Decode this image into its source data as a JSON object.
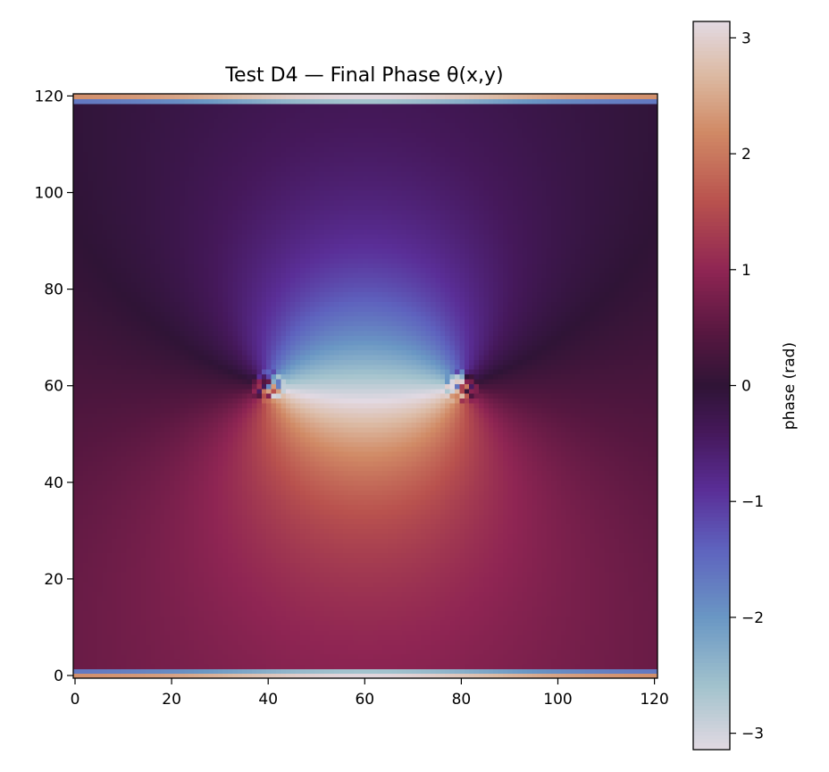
{
  "chart_data": {
    "type": "heatmap",
    "title": "Test D4 — Final Phase θ(x,y)",
    "xlabel": "",
    "ylabel": "",
    "xlim": [
      0,
      121
    ],
    "ylim": [
      0,
      121
    ],
    "x_ticks": [
      0,
      20,
      40,
      60,
      80,
      100,
      120
    ],
    "y_ticks": [
      0,
      20,
      40,
      60,
      80,
      100,
      120
    ],
    "grid": false,
    "colormap": "twilight_shifted",
    "colorbar": {
      "label": "phase (rad)",
      "range": [
        -3.14159,
        3.14159
      ],
      "ticks": [
        3,
        2,
        1,
        0,
        -1,
        -2,
        -3
      ],
      "tick_labels": [
        "3",
        "2",
        "1",
        "0",
        "−1",
        "−2",
        "−3"
      ]
    },
    "field_model": {
      "description": "phase of field with vortex-antivortex pair plus boundary layers",
      "vortices": [
        {
          "x": 40,
          "y": 60,
          "charge": 1
        },
        {
          "x": 80,
          "y": 60,
          "charge": -1
        }
      ],
      "core_radius": 4,
      "offset": 0.3,
      "boundary_rows_top": [
        119,
        120
      ],
      "boundary_rows_bottom": [
        0,
        1
      ]
    },
    "colormap_stops": [
      {
        "v": -3.14159,
        "color": "#e2d9e2"
      },
      {
        "v": -2.6,
        "color": "#a3c3cd"
      },
      {
        "v": -2.0,
        "color": "#6a97c4"
      },
      {
        "v": -1.4,
        "color": "#5e62be"
      },
      {
        "v": -0.9,
        "color": "#5a2e97"
      },
      {
        "v": -0.4,
        "color": "#45185a"
      },
      {
        "v": 0.0,
        "color": "#2f1436"
      },
      {
        "v": 0.45,
        "color": "#561740"
      },
      {
        "v": 1.0,
        "color": "#8f2553"
      },
      {
        "v": 1.6,
        "color": "#b9524e"
      },
      {
        "v": 2.2,
        "color": "#d18b66"
      },
      {
        "v": 2.7,
        "color": "#dcbba5"
      },
      {
        "v": 3.14159,
        "color": "#e2d9e2"
      }
    ]
  }
}
